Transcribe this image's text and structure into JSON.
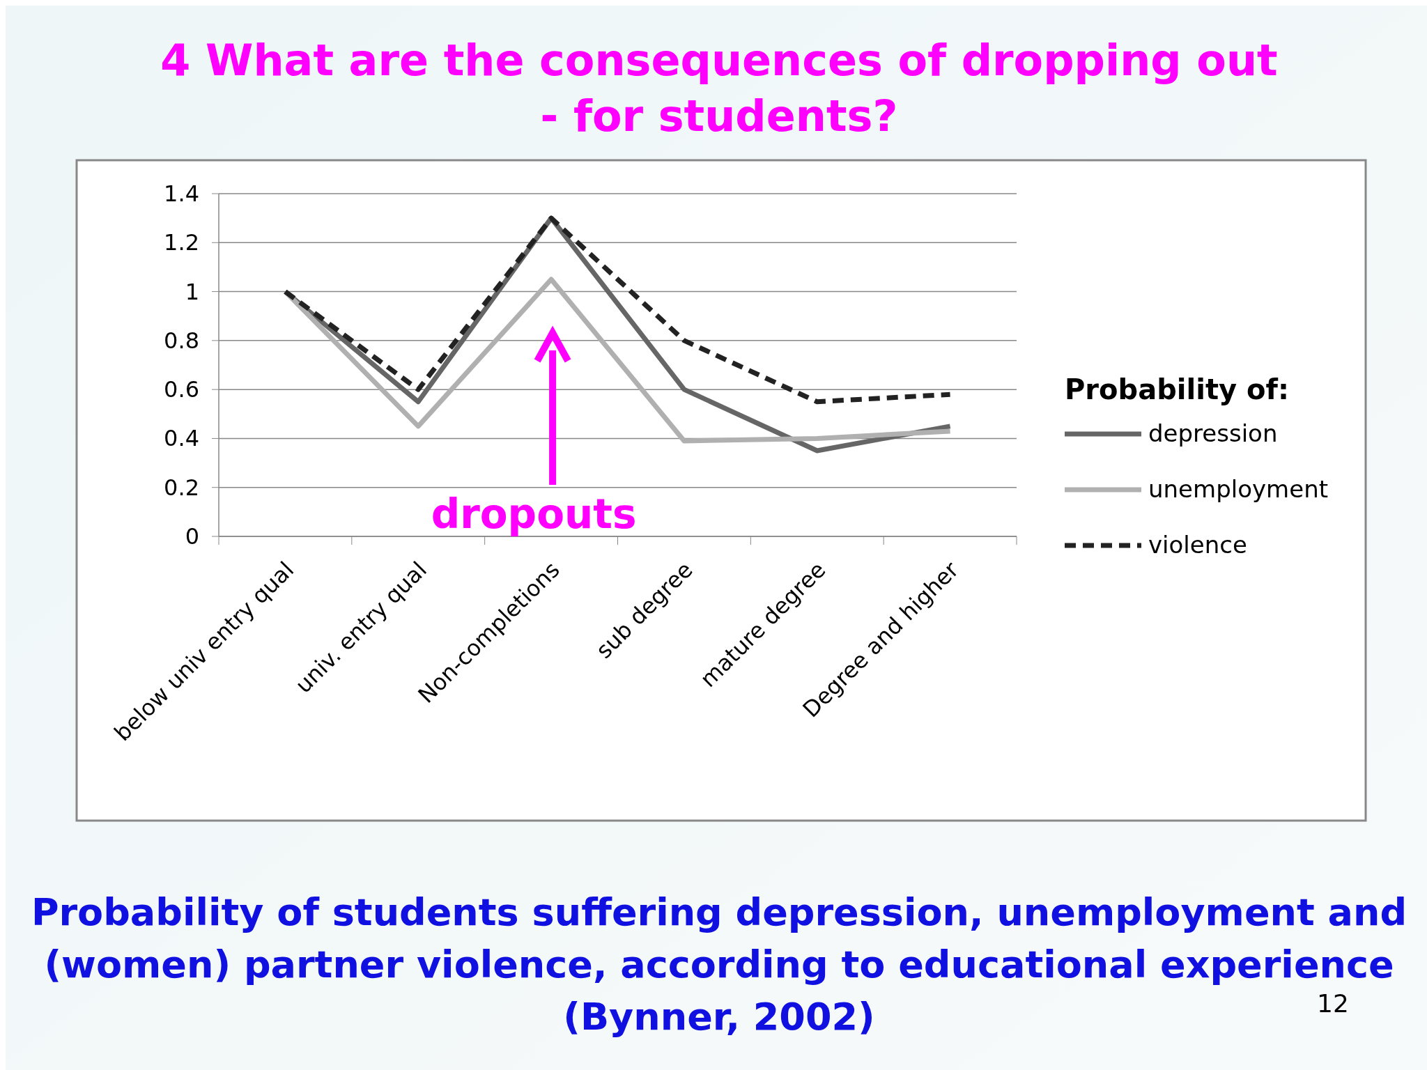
{
  "chart_data": {
    "type": "line",
    "title": "4 What are the consequences of dropping out - for students?",
    "categories": [
      "below univ entry qual",
      "univ. entry qual",
      "Non-completions",
      "sub degree",
      "mature degree",
      "Degree and higher"
    ],
    "series": [
      {
        "name": "depression",
        "color": "#666666",
        "values": [
          1,
          0.55,
          1.3,
          0.6,
          0.35,
          0.45
        ],
        "line_style": "solid"
      },
      {
        "name": "unemployment",
        "color": "#b0b0b0",
        "values": [
          1,
          0.45,
          1.05,
          0.39,
          0.4,
          0.43
        ],
        "line_style": "solid"
      },
      {
        "name": "violence",
        "color": "#222222",
        "values": [
          1,
          0.6,
          1.3,
          0.8,
          0.55,
          0.58
        ],
        "line_style": "dashed"
      }
    ],
    "ylim": [
      0,
      1.4
    ],
    "yticks": [
      0,
      0.2,
      0.4,
      0.6,
      0.8,
      1,
      1.2,
      1.4
    ],
    "grid": "y",
    "legend": "right",
    "legend_title": "Probability of:",
    "annotations": [
      "dropouts",
      "Probability of students suffering depression, unemployment and (women) partner violence, according to educational experience (Bynner, 2002)",
      "12"
    ]
  }
}
